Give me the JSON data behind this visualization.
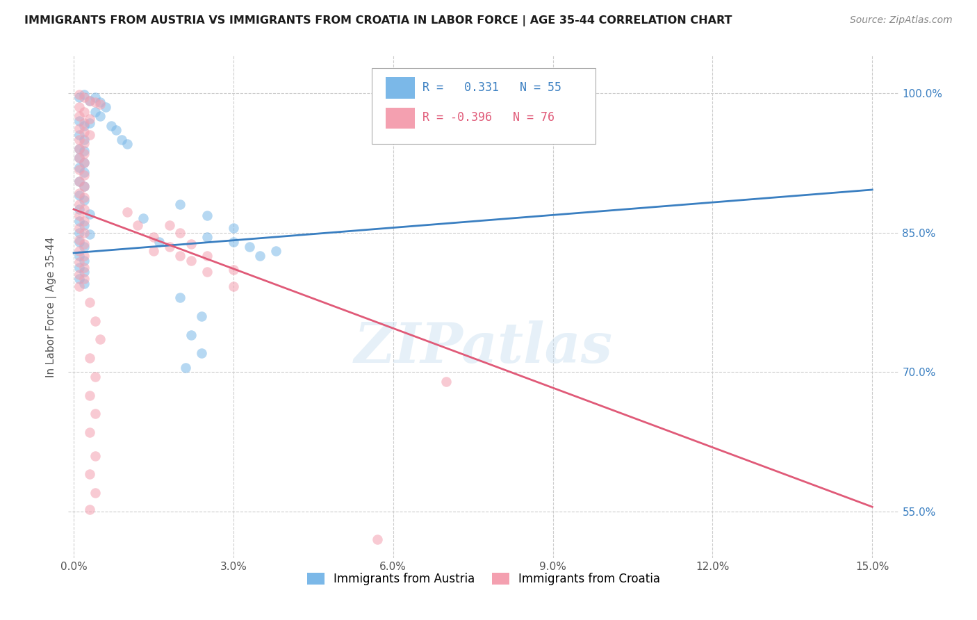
{
  "title": "IMMIGRANTS FROM AUSTRIA VS IMMIGRANTS FROM CROATIA IN LABOR FORCE | AGE 35-44 CORRELATION CHART",
  "source": "Source: ZipAtlas.com",
  "ylabel": "In Labor Force | Age 35-44",
  "xlabel": "",
  "xlim": [
    -0.001,
    0.155
  ],
  "ylim": [
    0.5,
    1.04
  ],
  "xticks": [
    0.0,
    0.03,
    0.06,
    0.09,
    0.12,
    0.15
  ],
  "xtick_labels": [
    "0.0%",
    "3.0%",
    "6.0%",
    "9.0%",
    "12.0%",
    "15.0%"
  ],
  "yticks": [
    0.55,
    0.7,
    0.85,
    1.0
  ],
  "ytick_labels": [
    "55.0%",
    "70.0%",
    "85.0%",
    "100.0%"
  ],
  "austria_color": "#7bb8e8",
  "croatia_color": "#f4a0b0",
  "austria_R": 0.331,
  "austria_N": 55,
  "croatia_R": -0.396,
  "croatia_N": 76,
  "austria_line_color": "#3a7fc1",
  "croatia_line_color": "#e05a78",
  "austria_line": {
    "x0": 0.0,
    "y0": 0.828,
    "x1": 0.15,
    "y1": 0.896
  },
  "croatia_line": {
    "x0": 0.0,
    "y0": 0.875,
    "x1": 0.15,
    "y1": 0.555
  },
  "watermark": "ZIPatlas",
  "background_color": "#ffffff",
  "grid_color": "#cccccc",
  "legend_label_austria": "Immigrants from Austria",
  "legend_label_croatia": "Immigrants from Croatia",
  "austria_scatter": [
    [
      0.001,
      0.995
    ],
    [
      0.002,
      0.998
    ],
    [
      0.003,
      0.992
    ],
    [
      0.004,
      0.995
    ],
    [
      0.005,
      0.99
    ],
    [
      0.006,
      0.985
    ],
    [
      0.004,
      0.98
    ],
    [
      0.005,
      0.975
    ],
    [
      0.001,
      0.97
    ],
    [
      0.002,
      0.965
    ],
    [
      0.003,
      0.968
    ],
    [
      0.007,
      0.965
    ],
    [
      0.008,
      0.96
    ],
    [
      0.001,
      0.955
    ],
    [
      0.002,
      0.95
    ],
    [
      0.009,
      0.95
    ],
    [
      0.01,
      0.945
    ],
    [
      0.001,
      0.94
    ],
    [
      0.002,
      0.938
    ],
    [
      0.001,
      0.93
    ],
    [
      0.002,
      0.925
    ],
    [
      0.001,
      0.92
    ],
    [
      0.002,
      0.915
    ],
    [
      0.001,
      0.905
    ],
    [
      0.002,
      0.9
    ],
    [
      0.001,
      0.89
    ],
    [
      0.002,
      0.885
    ],
    [
      0.001,
      0.875
    ],
    [
      0.003,
      0.87
    ],
    [
      0.001,
      0.862
    ],
    [
      0.002,
      0.858
    ],
    [
      0.001,
      0.85
    ],
    [
      0.003,
      0.848
    ],
    [
      0.001,
      0.84
    ],
    [
      0.002,
      0.835
    ],
    [
      0.001,
      0.825
    ],
    [
      0.002,
      0.82
    ],
    [
      0.001,
      0.812
    ],
    [
      0.002,
      0.808
    ],
    [
      0.001,
      0.8
    ],
    [
      0.002,
      0.795
    ],
    [
      0.013,
      0.865
    ],
    [
      0.016,
      0.84
    ],
    [
      0.02,
      0.88
    ],
    [
      0.025,
      0.868
    ],
    [
      0.025,
      0.845
    ],
    [
      0.03,
      0.855
    ],
    [
      0.03,
      0.84
    ],
    [
      0.033,
      0.835
    ],
    [
      0.035,
      0.825
    ],
    [
      0.038,
      0.83
    ],
    [
      0.02,
      0.78
    ],
    [
      0.024,
      0.76
    ],
    [
      0.022,
      0.74
    ],
    [
      0.024,
      0.72
    ],
    [
      0.021,
      0.705
    ]
  ],
  "croatia_scatter": [
    [
      0.001,
      0.998
    ],
    [
      0.002,
      0.995
    ],
    [
      0.003,
      0.992
    ],
    [
      0.004,
      0.99
    ],
    [
      0.005,
      0.988
    ],
    [
      0.001,
      0.985
    ],
    [
      0.002,
      0.98
    ],
    [
      0.001,
      0.975
    ],
    [
      0.003,
      0.972
    ],
    [
      0.002,
      0.968
    ],
    [
      0.001,
      0.962
    ],
    [
      0.002,
      0.958
    ],
    [
      0.003,
      0.955
    ],
    [
      0.001,
      0.95
    ],
    [
      0.002,
      0.946
    ],
    [
      0.001,
      0.94
    ],
    [
      0.002,
      0.935
    ],
    [
      0.001,
      0.93
    ],
    [
      0.002,
      0.925
    ],
    [
      0.001,
      0.918
    ],
    [
      0.002,
      0.912
    ],
    [
      0.001,
      0.905
    ],
    [
      0.002,
      0.9
    ],
    [
      0.001,
      0.892
    ],
    [
      0.002,
      0.888
    ],
    [
      0.001,
      0.88
    ],
    [
      0.002,
      0.875
    ],
    [
      0.001,
      0.868
    ],
    [
      0.002,
      0.862
    ],
    [
      0.001,
      0.855
    ],
    [
      0.002,
      0.85
    ],
    [
      0.001,
      0.842
    ],
    [
      0.002,
      0.838
    ],
    [
      0.001,
      0.83
    ],
    [
      0.002,
      0.825
    ],
    [
      0.001,
      0.818
    ],
    [
      0.002,
      0.812
    ],
    [
      0.001,
      0.805
    ],
    [
      0.002,
      0.8
    ],
    [
      0.001,
      0.792
    ],
    [
      0.01,
      0.872
    ],
    [
      0.012,
      0.858
    ],
    [
      0.015,
      0.845
    ],
    [
      0.015,
      0.83
    ],
    [
      0.018,
      0.858
    ],
    [
      0.018,
      0.835
    ],
    [
      0.02,
      0.85
    ],
    [
      0.02,
      0.825
    ],
    [
      0.022,
      0.838
    ],
    [
      0.022,
      0.82
    ],
    [
      0.025,
      0.825
    ],
    [
      0.025,
      0.808
    ],
    [
      0.03,
      0.81
    ],
    [
      0.03,
      0.792
    ],
    [
      0.003,
      0.775
    ],
    [
      0.004,
      0.755
    ],
    [
      0.005,
      0.735
    ],
    [
      0.003,
      0.715
    ],
    [
      0.004,
      0.695
    ],
    [
      0.003,
      0.675
    ],
    [
      0.004,
      0.655
    ],
    [
      0.003,
      0.635
    ],
    [
      0.004,
      0.61
    ],
    [
      0.003,
      0.59
    ],
    [
      0.004,
      0.57
    ],
    [
      0.003,
      0.552
    ],
    [
      0.07,
      0.69
    ],
    [
      0.057,
      0.52
    ]
  ]
}
